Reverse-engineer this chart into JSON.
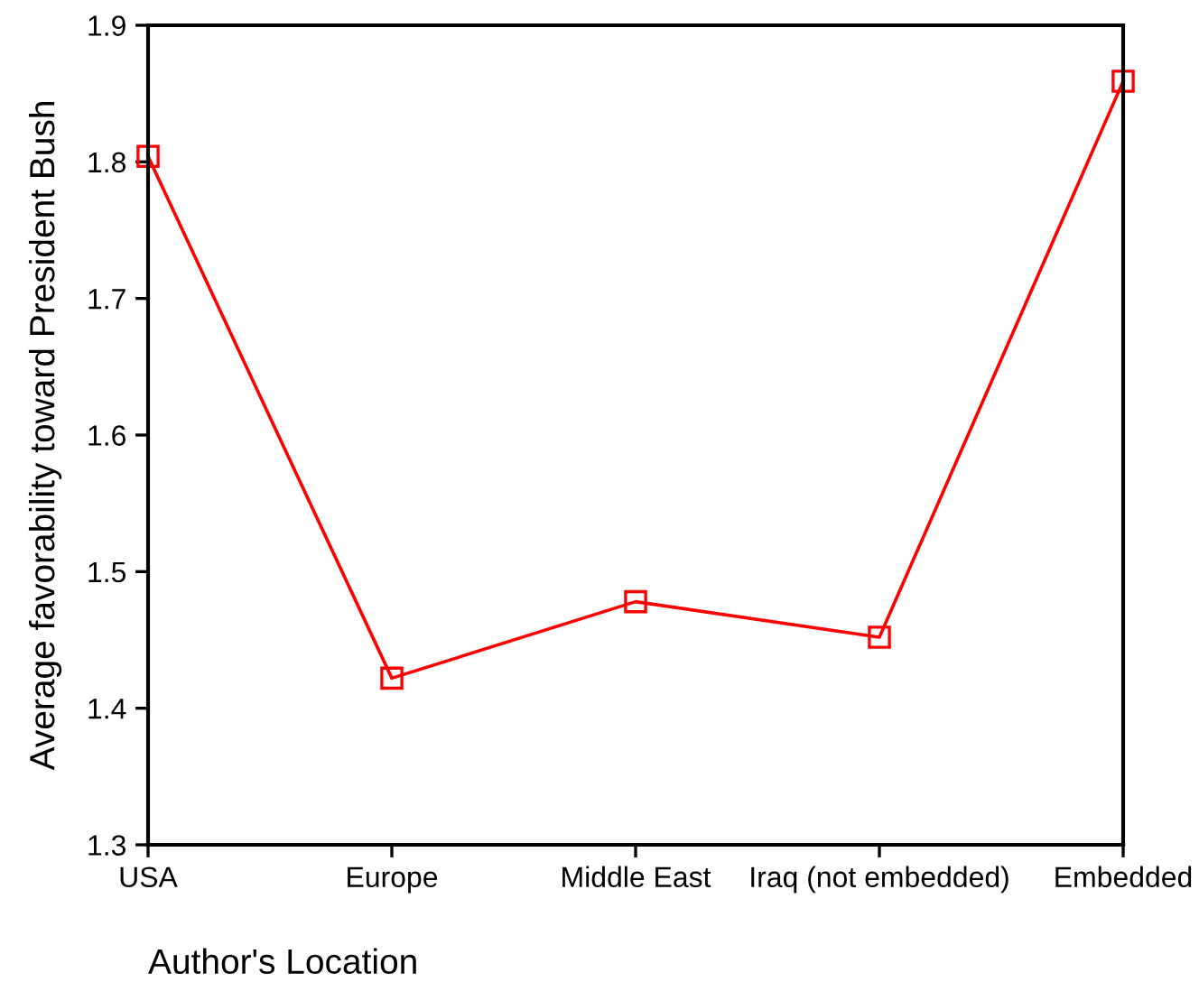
{
  "chart_data": {
    "type": "line",
    "xlabel": "Author's Location",
    "ylabel": "Average favorability toward President Bush",
    "categories": [
      "USA",
      "Europe",
      "Middle East",
      "Iraq (not embedded)",
      "Embedded"
    ],
    "series": [
      {
        "color": "#ff0000",
        "values": [
          1.804,
          1.422,
          1.478,
          1.452,
          1.859
        ]
      }
    ],
    "ylim": [
      1.3,
      1.9
    ],
    "yticks": [
      1.3,
      1.4,
      1.5,
      1.6,
      1.7,
      1.8,
      1.9
    ],
    "marker": "square",
    "line_style": "solid",
    "grid": false,
    "legend": false
  }
}
